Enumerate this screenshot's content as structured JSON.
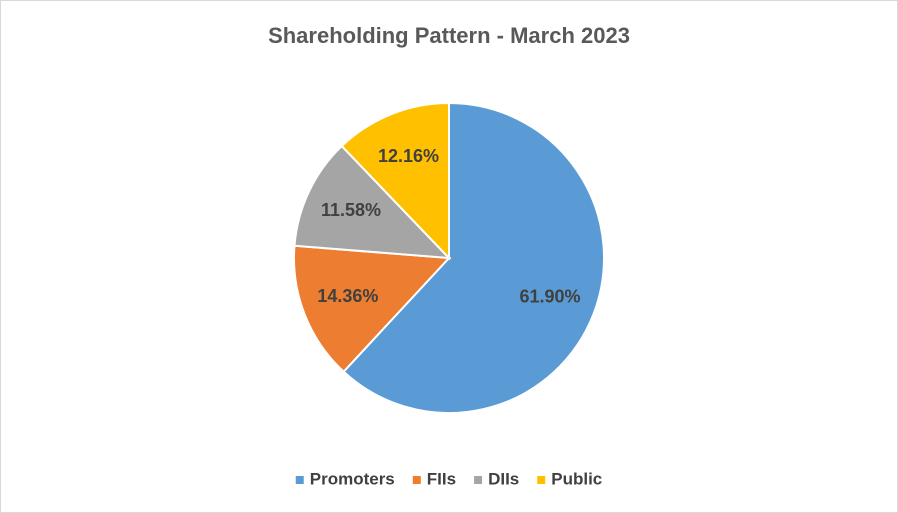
{
  "chart_data": {
    "type": "pie",
    "title": "Shareholding Pattern - March 2023",
    "categories": [
      "Promoters",
      "FIIs",
      "DIIs",
      "Public"
    ],
    "values": [
      61.9,
      14.36,
      11.58,
      12.16
    ],
    "value_labels": [
      "61.90%",
      "14.36%",
      "11.58%",
      "12.16%"
    ],
    "colors": [
      "#5b9bd5",
      "#ed7d31",
      "#a5a5a5",
      "#ffc000"
    ],
    "legend": "bottom"
  }
}
